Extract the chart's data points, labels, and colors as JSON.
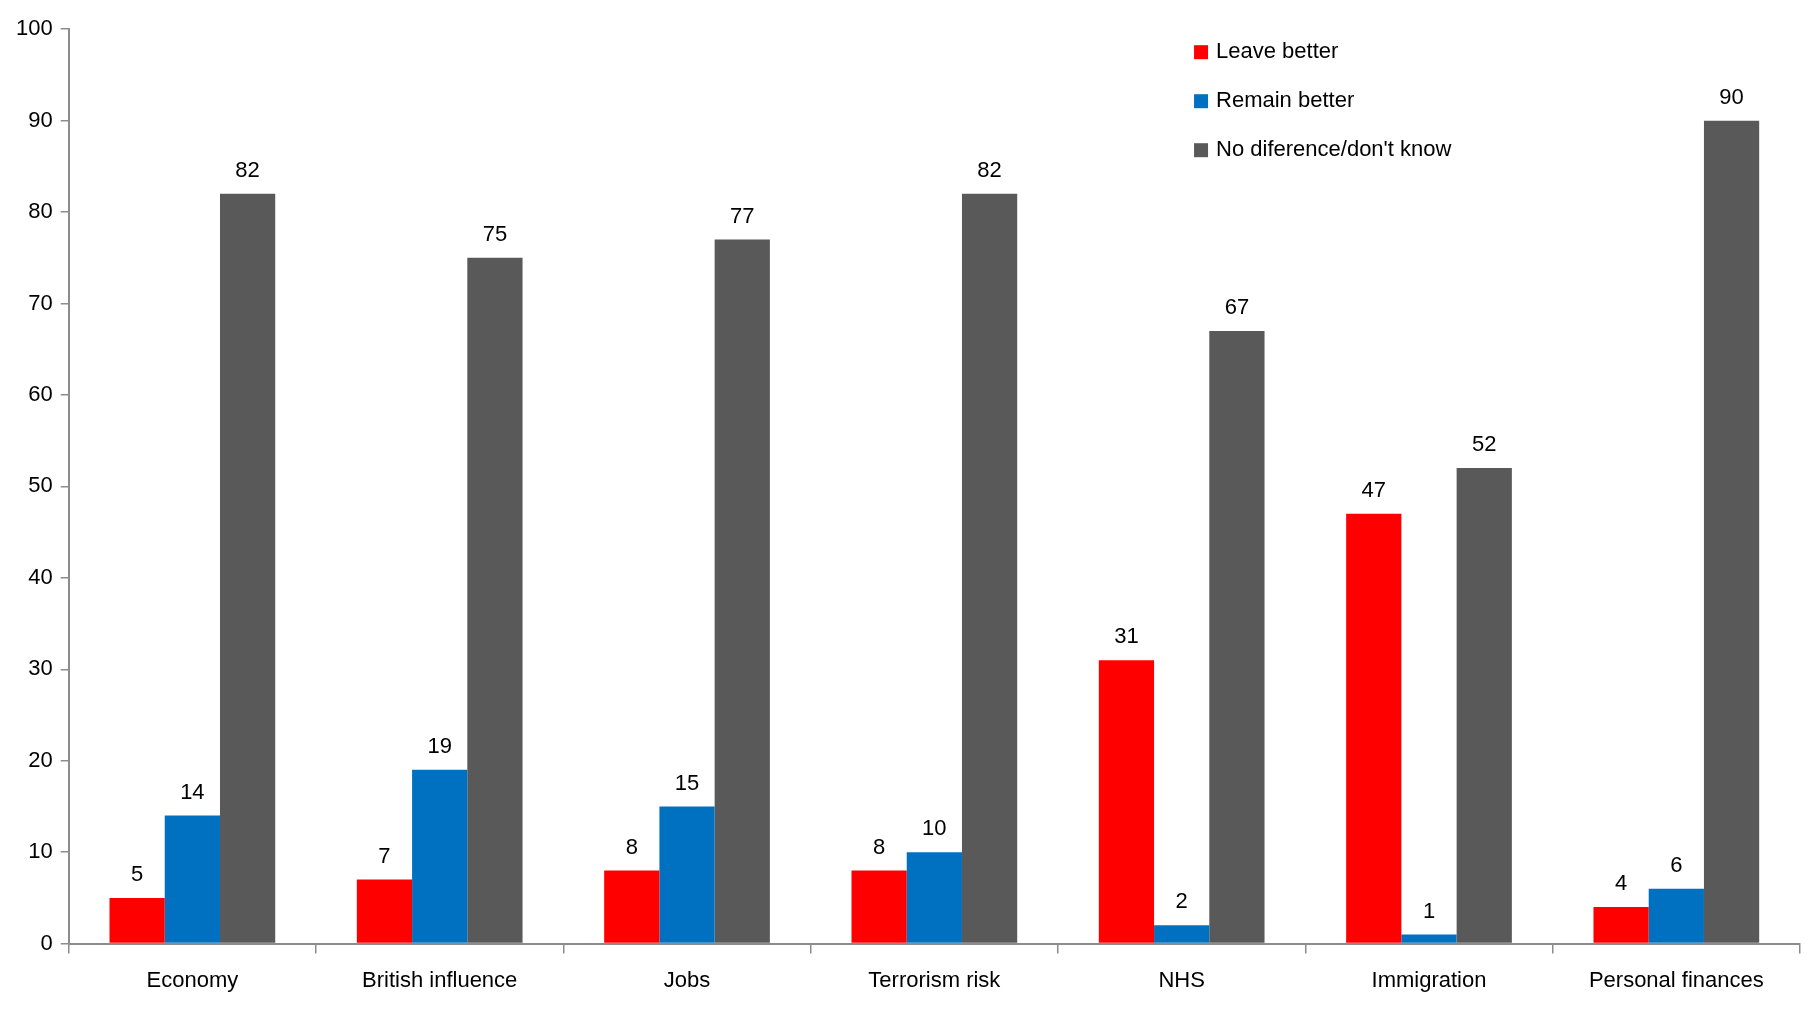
{
  "chart_data": {
    "type": "bar",
    "categories": [
      "Economy",
      "British influence",
      "Jobs",
      "Terrorism risk",
      "NHS",
      "Immigration",
      "Personal finances"
    ],
    "series": [
      {
        "name": "Leave better",
        "color": "#ff0000",
        "values": [
          5,
          7,
          8,
          8,
          31,
          47,
          4
        ]
      },
      {
        "name": "Remain better",
        "color": "#0070c0",
        "values": [
          14,
          19,
          15,
          10,
          2,
          1,
          6
        ]
      },
      {
        "name": "No diference/don't know",
        "color": "#595959",
        "values": [
          82,
          75,
          77,
          82,
          67,
          52,
          90
        ]
      }
    ],
    "ylim": [
      0,
      100
    ],
    "yticks": [
      0,
      10,
      20,
      30,
      40,
      50,
      60,
      70,
      80,
      90,
      100
    ],
    "legend": "top right",
    "data_labels": true
  }
}
